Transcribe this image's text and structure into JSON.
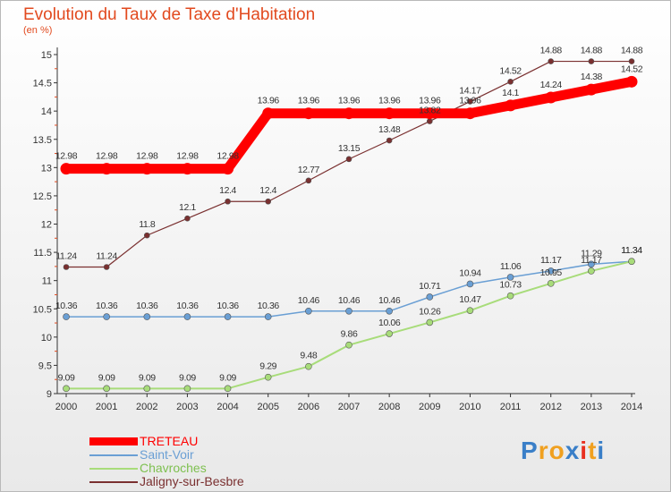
{
  "chart_data": {
    "type": "line",
    "title": "Evolution du Taux de Taxe d'Habitation",
    "unit_label": "(en %)",
    "x": [
      "2000",
      "2001",
      "2002",
      "2003",
      "2004",
      "2005",
      "2006",
      "2007",
      "2008",
      "2009",
      "2010",
      "2011",
      "2012",
      "2013",
      "2014"
    ],
    "ylim": [
      9,
      15
    ],
    "yticks": [
      "9",
      "9.5",
      "10",
      "10.5",
      "11",
      "11.5",
      "12",
      "12.5",
      "13",
      "13.5",
      "14",
      "14.5",
      "15"
    ],
    "grid": false,
    "legend_position": "bottom-left",
    "series": [
      {
        "name": "TRETEAU",
        "color": "#ff0000",
        "values": [
          12.98,
          12.98,
          12.98,
          12.98,
          12.98,
          13.96,
          13.96,
          13.96,
          13.96,
          13.96,
          13.96,
          14.1,
          14.24,
          14.38,
          14.52
        ],
        "labels": [
          "12.98",
          "12.98",
          "12.98",
          "12.98",
          "12.98",
          "13.96",
          "13.96",
          "13.96",
          "13.96",
          "13.96",
          "13.96",
          "14.1",
          "14.24",
          "14.38",
          "14.52"
        ]
      },
      {
        "name": "Saint-Voir",
        "color": "#6a9fd4",
        "values": [
          10.36,
          10.36,
          10.36,
          10.36,
          10.36,
          10.36,
          10.46,
          10.46,
          10.46,
          10.71,
          10.94,
          11.06,
          11.17,
          11.29,
          11.34
        ],
        "labels": [
          "10.36",
          "10.36",
          "10.36",
          "10.36",
          "10.36",
          "10.36",
          "10.46",
          "10.46",
          "10.46",
          "10.71",
          "10.94",
          "11.06",
          "11.17",
          "11.29",
          "11.34"
        ]
      },
      {
        "name": "Chavroches",
        "color": "#a8dc7a",
        "values": [
          9.09,
          9.09,
          9.09,
          9.09,
          9.09,
          9.29,
          9.48,
          9.86,
          10.06,
          10.26,
          10.47,
          10.73,
          10.95,
          11.17,
          11.34
        ],
        "labels": [
          "9.09",
          "9.09",
          "9.09",
          "9.09",
          "9.09",
          "9.29",
          "9.48",
          "9.86",
          "10.06",
          "10.26",
          "10.47",
          "10.73",
          "10.95",
          "11.17",
          "11.34"
        ]
      },
      {
        "name": "Jaligny-sur-Besbre",
        "color": "#7a3030",
        "values": [
          11.24,
          11.24,
          11.8,
          12.1,
          12.4,
          12.4,
          12.77,
          13.15,
          13.48,
          13.82,
          14.17,
          14.52,
          14.88,
          14.88,
          14.88
        ],
        "labels": [
          "11.24",
          "11.24",
          "11.8",
          "12.1",
          "12.4",
          "12.4",
          "12.77",
          "13.15",
          "13.48",
          "13.82",
          "14.17",
          "14.52",
          "14.88",
          "14.88",
          "14.88"
        ]
      }
    ]
  },
  "logo": {
    "text": "Proxiti",
    "letters": [
      {
        "ch": "P",
        "color": "#3a7fc8"
      },
      {
        "ch": "r",
        "color": "#f0a020"
      },
      {
        "ch": "o",
        "color": "#f0a020"
      },
      {
        "ch": "x",
        "color": "#3a7fc8"
      },
      {
        "ch": "i",
        "color": "#e83020"
      },
      {
        "ch": "t",
        "color": "#f0a020"
      },
      {
        "ch": "i",
        "color": "#3a7fc8"
      }
    ]
  }
}
